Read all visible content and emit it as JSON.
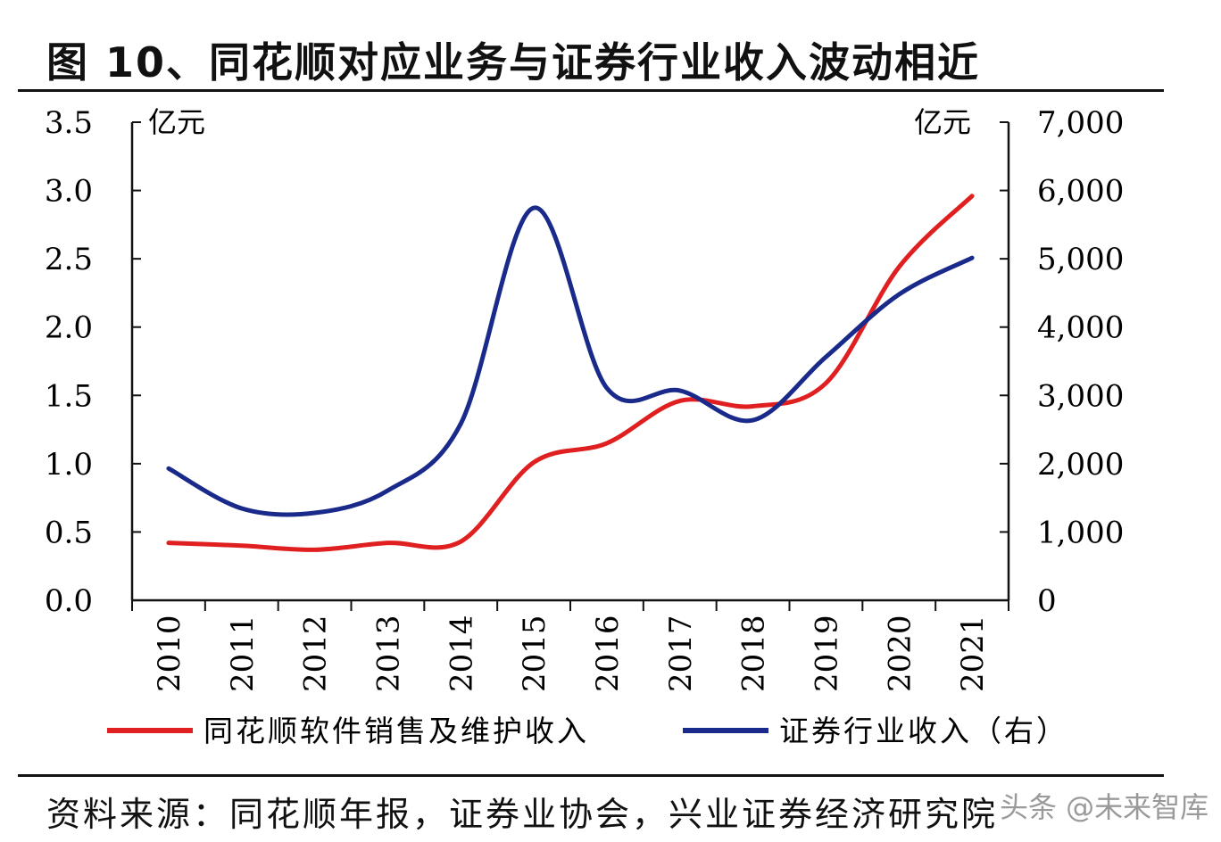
{
  "title": "图 10、同花顺对应业务与证券行业收入波动相近",
  "source": "资料来源：同花顺年报，证券业协会，兴业证券经济研究院",
  "watermark": "头条 @未来智库",
  "chart_data": {
    "type": "line",
    "title": "",
    "x": [
      "2010",
      "2011",
      "2012",
      "2013",
      "2014",
      "2015",
      "2016",
      "2017",
      "2018",
      "2019",
      "2020",
      "2021"
    ],
    "left_axis": {
      "unit": "亿元",
      "ylim": [
        0,
        3.5
      ],
      "ticks": [
        "0.0",
        "0.5",
        "1.0",
        "1.5",
        "2.0",
        "2.5",
        "3.0",
        "3.5"
      ]
    },
    "right_axis": {
      "unit": "亿元",
      "ylim": [
        0,
        7000
      ],
      "ticks": [
        "0",
        "1,000",
        "2,000",
        "3,000",
        "4,000",
        "5,000",
        "6,000",
        "7,000"
      ]
    },
    "series": [
      {
        "name": "同花顺软件销售及维护收入",
        "axis": "left",
        "color": "#e02020",
        "values": [
          0.42,
          0.4,
          0.37,
          0.42,
          0.43,
          1.01,
          1.15,
          1.46,
          1.42,
          1.59,
          2.44,
          2.96
        ]
      },
      {
        "name": "证券行业收入（右）",
        "axis": "right",
        "color": "#1a2a8a",
        "values": [
          1930,
          1345,
          1280,
          1606,
          2585,
          5745,
          3107,
          3070,
          2637,
          3564,
          4478,
          5013
        ]
      }
    ],
    "grid": false,
    "legend": "bottom"
  }
}
